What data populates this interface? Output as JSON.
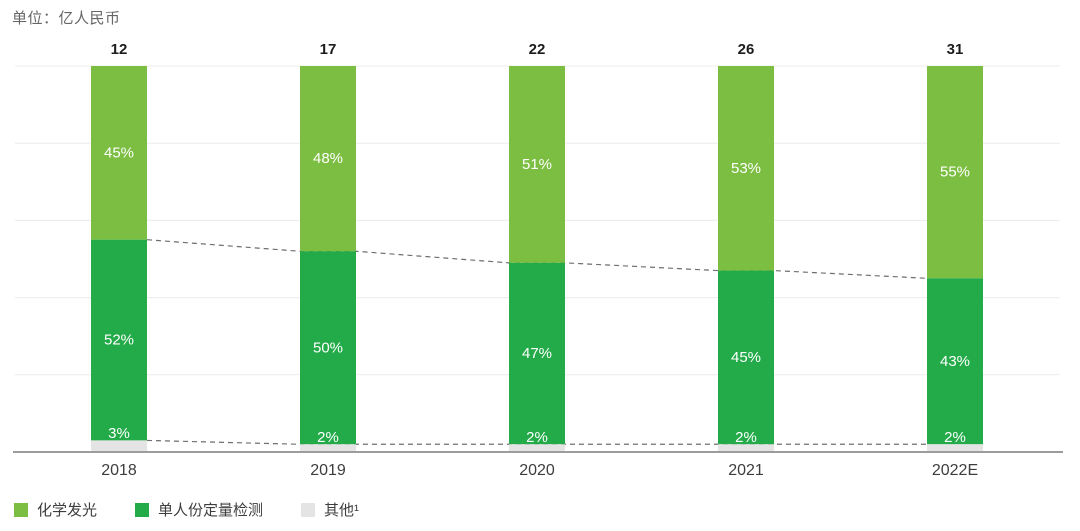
{
  "unit_label": "单位：亿人民币",
  "colors": {
    "light_green": "#7CBE42",
    "dark_green": "#23AB49",
    "gray": "#E4E4E4",
    "gridline": "#ECECEC",
    "axis_line": "#9C9C9C",
    "dashed_line": "#6E6E6E",
    "total_label": "#1C1C1C",
    "axis_label": "#3D3D3D",
    "percent_label": "#FFFFFF"
  },
  "chart_data": {
    "type": "bar",
    "subtype": "stacked-100-percent",
    "title": "单位：亿人民币",
    "categories": [
      "2018",
      "2019",
      "2020",
      "2021",
      "2022E"
    ],
    "totals": [
      12,
      17,
      22,
      26,
      31
    ],
    "series": [
      {
        "name": "化学发光",
        "color_key": "light_green",
        "values": [
          45,
          48,
          51,
          53,
          55
        ]
      },
      {
        "name": "单人份定量检测",
        "color_key": "dark_green",
        "values": [
          52,
          50,
          47,
          45,
          43
        ]
      },
      {
        "name": "其他¹",
        "color_key": "gray",
        "values": [
          3,
          2,
          2,
          2,
          2
        ]
      }
    ],
    "value_suffix": "%",
    "ylim": [
      0,
      100
    ],
    "grid": true,
    "gridline_intervals": 5,
    "legend_position": "bottom-left",
    "dashed_connectors": [
      {
        "between": [
          "化学发光",
          "单人份定量检测"
        ]
      },
      {
        "between": [
          "单人份定量检测",
          "其他¹"
        ]
      }
    ]
  }
}
